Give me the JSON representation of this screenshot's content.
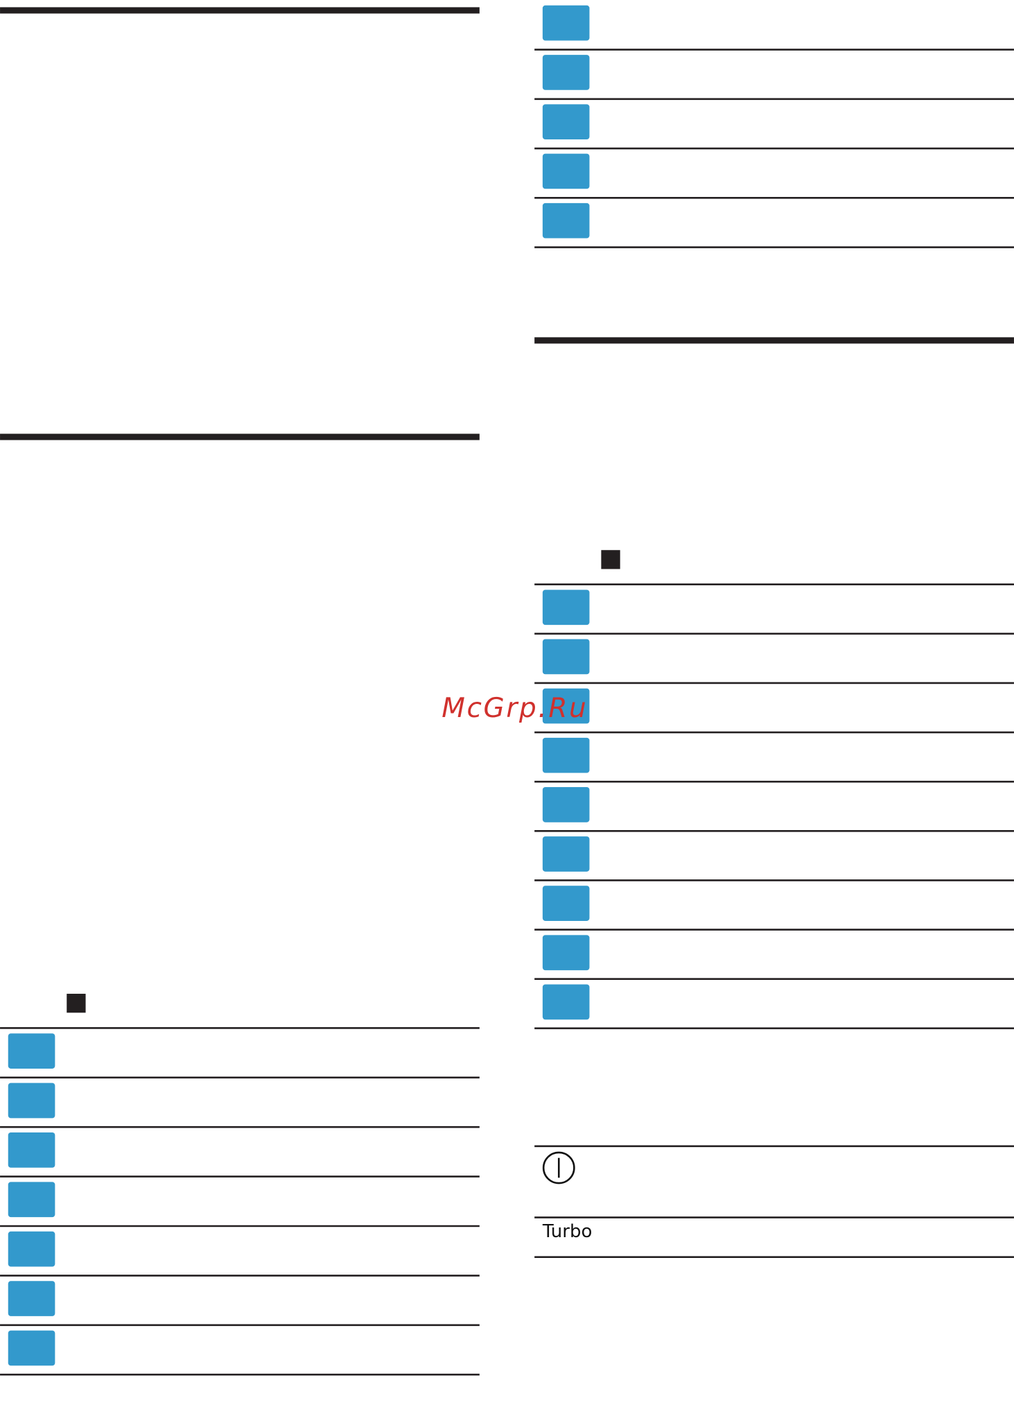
{
  "watermark": "McGrp.Ru",
  "turbo_label": "Turbo"
}
